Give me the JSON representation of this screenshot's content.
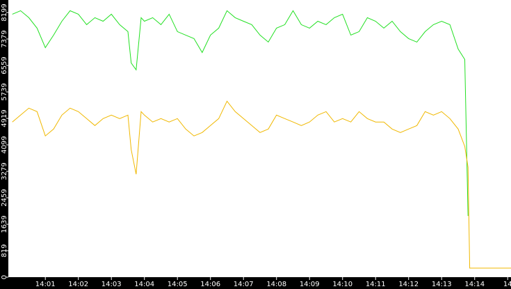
{
  "chart_data": {
    "type": "line",
    "xlim": [
      -0.12,
      15.1
    ],
    "ylim": [
      0,
      8587
    ],
    "xticks": [
      {
        "value": 1,
        "label": "14:01"
      },
      {
        "value": 2,
        "label": "14:02"
      },
      {
        "value": 3,
        "label": "14:03"
      },
      {
        "value": 4,
        "label": "14:04"
      },
      {
        "value": 5,
        "label": "14:05"
      },
      {
        "value": 6,
        "label": "14:06"
      },
      {
        "value": 7,
        "label": "14:07"
      },
      {
        "value": 8,
        "label": "14:08"
      },
      {
        "value": 9,
        "label": "14:09"
      },
      {
        "value": 10,
        "label": "14:10"
      },
      {
        "value": 11,
        "label": "14:11"
      },
      {
        "value": 12,
        "label": "14:12"
      },
      {
        "value": 13,
        "label": "14:13"
      },
      {
        "value": 14,
        "label": "14:14"
      },
      {
        "value": 15,
        "label": "14"
      }
    ],
    "yticks": [
      0,
      819,
      1639,
      2459,
      3279,
      4099,
      4919,
      5739,
      6559,
      7379,
      8199
    ],
    "series": [
      {
        "color": "#22e022",
        "x": [
          0,
          0.25,
          0.5,
          0.75,
          1,
          1.25,
          1.5,
          1.75,
          2,
          2.25,
          2.5,
          2.75,
          3,
          3.25,
          3.5,
          3.6,
          3.75,
          3.9,
          4,
          4.25,
          4.5,
          4.75,
          5,
          5.25,
          5.5,
          5.75,
          6,
          6.25,
          6.5,
          6.75,
          7,
          7.25,
          7.5,
          7.75,
          8,
          8.25,
          8.5,
          8.75,
          9,
          9.25,
          9.5,
          9.75,
          10,
          10.25,
          10.5,
          10.75,
          11,
          11.25,
          11.5,
          11.75,
          12,
          12.25,
          12.5,
          12.75,
          13,
          13.25,
          13.5,
          13.7,
          13.8
        ],
        "values": [
          8146,
          8254,
          8038,
          7715,
          7111,
          7499,
          7930,
          8254,
          8146,
          7823,
          8038,
          7930,
          8146,
          7823,
          7607,
          6637,
          6422,
          8038,
          7930,
          8038,
          7823,
          8146,
          7607,
          7499,
          7392,
          6960,
          7499,
          7715,
          8254,
          8038,
          7930,
          7823,
          7499,
          7284,
          7715,
          7823,
          8254,
          7823,
          7715,
          7930,
          7823,
          8038,
          8146,
          7499,
          7607,
          8038,
          7930,
          7715,
          7930,
          7607,
          7392,
          7284,
          7607,
          7823,
          7930,
          7823,
          7068,
          6745,
          1896
        ]
      },
      {
        "color": "#f0b800",
        "x": [
          0,
          0.25,
          0.5,
          0.75,
          1,
          1.25,
          1.5,
          1.75,
          2,
          2.25,
          2.5,
          2.75,
          3,
          3.25,
          3.5,
          3.6,
          3.75,
          3.9,
          4,
          4.25,
          4.5,
          4.75,
          5,
          5.25,
          5.5,
          5.75,
          6,
          6.25,
          6.5,
          6.75,
          7,
          7.25,
          7.5,
          7.75,
          8,
          8.25,
          8.5,
          8.75,
          9,
          9.25,
          9.5,
          9.75,
          10,
          10.25,
          10.5,
          10.75,
          11,
          11.25,
          11.5,
          11.75,
          12,
          12.25,
          12.5,
          12.75,
          13,
          13.25,
          13.5,
          13.7,
          13.8,
          13.85,
          15.1
        ],
        "values": [
          4806,
          5021,
          5237,
          5129,
          4375,
          4590,
          5021,
          5237,
          5129,
          4913,
          4698,
          4913,
          5021,
          4913,
          5021,
          3953,
          3189,
          5129,
          5021,
          4806,
          4913,
          4806,
          4913,
          4590,
          4375,
          4482,
          4698,
          4913,
          5452,
          5129,
          4913,
          4698,
          4482,
          4590,
          5021,
          4913,
          4806,
          4698,
          4806,
          5021,
          5129,
          4806,
          4913,
          4806,
          5129,
          4913,
          4806,
          4806,
          4590,
          4482,
          4590,
          4698,
          5129,
          5021,
          5129,
          4913,
          4590,
          4051,
          3405,
          280,
          280
        ]
      }
    ]
  }
}
